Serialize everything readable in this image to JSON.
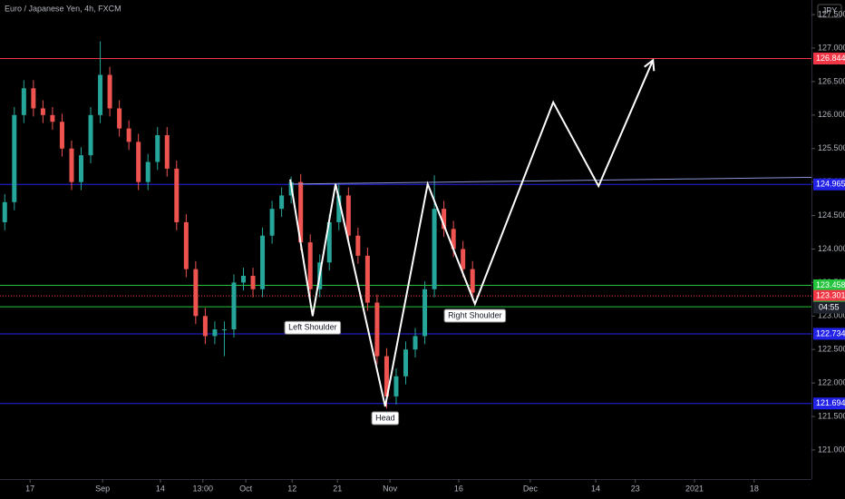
{
  "chart_data": {
    "type": "candlestick",
    "title": "Euro / Japanese Yen, 4h, FXCM",
    "currency": "JPY",
    "countdown": "04:55",
    "up_color": "#26a69a",
    "down_color": "#ef5350",
    "xlim": [
      0,
      170
    ],
    "ylim": [
      120.566,
      127.718
    ],
    "xticks": [
      {
        "value": 6.3,
        "label": "17"
      },
      {
        "value": 21.5,
        "label": "Sep"
      },
      {
        "value": 33.6,
        "label": "14"
      },
      {
        "value": 42.5,
        "label": "13:00"
      },
      {
        "value": 51.5,
        "label": "Oct"
      },
      {
        "value": 61.2,
        "label": "12"
      },
      {
        "value": 70.7,
        "label": "21"
      },
      {
        "value": 81.7,
        "label": "Nov"
      },
      {
        "value": 96.1,
        "label": "16"
      },
      {
        "value": 111.1,
        "label": "Dec"
      },
      {
        "value": 124.8,
        "label": "14"
      },
      {
        "value": 133.1,
        "label": "23"
      },
      {
        "value": 145.5,
        "label": "2021"
      },
      {
        "value": 158.0,
        "label": "18"
      }
    ],
    "yticks": [
      {
        "value": 121,
        "label": "121.000"
      },
      {
        "value": 121.5,
        "label": "121.500"
      },
      {
        "value": 122,
        "label": "122.000"
      },
      {
        "value": 122.5,
        "label": "122.500"
      },
      {
        "value": 123,
        "label": "123.000"
      },
      {
        "value": 123.5,
        "label": "123.500"
      },
      {
        "value": 124,
        "label": "124.000"
      },
      {
        "value": 124.5,
        "label": "124.500"
      },
      {
        "value": 125,
        "label": "125.000"
      },
      {
        "value": 125.5,
        "label": "125.500"
      },
      {
        "value": 126,
        "label": "126.000"
      },
      {
        "value": 126.5,
        "label": "126.500"
      },
      {
        "value": 127,
        "label": "127.000"
      },
      {
        "value": 127.5,
        "label": "127.500"
      }
    ],
    "candles": {
      "x": [
        1,
        3,
        5,
        7,
        9,
        11,
        13,
        15,
        17,
        19,
        21,
        23,
        25,
        27,
        29,
        31,
        33,
        35,
        37,
        39,
        41,
        43,
        45,
        47,
        49,
        51,
        53,
        55,
        57,
        59,
        61,
        63,
        65,
        67,
        69,
        71,
        73,
        75,
        77,
        79,
        81,
        83,
        85,
        87,
        89,
        91,
        93,
        95,
        97,
        99
      ],
      "open": [
        124.4,
        124.7,
        126.0,
        126.4,
        126.1,
        126.0,
        125.9,
        125.5,
        125.0,
        125.4,
        126.0,
        126.6,
        126.1,
        125.8,
        125.6,
        125.0,
        125.3,
        125.7,
        125.2,
        124.4,
        123.7,
        123.0,
        122.7,
        122.8,
        122.8,
        123.5,
        123.6,
        123.4,
        124.2,
        124.6,
        124.8,
        125.0,
        124.1,
        123.4,
        123.8,
        124.4,
        124.8,
        124.2,
        123.9,
        123.2,
        122.4,
        121.8,
        122.1,
        122.5,
        122.7,
        123.4,
        124.6,
        124.3,
        124.0,
        123.7
      ],
      "high": [
        124.82,
        126.12,
        126.52,
        126.52,
        126.22,
        126.12,
        126.02,
        125.62,
        125.52,
        126.12,
        127.1,
        126.72,
        126.22,
        125.92,
        125.72,
        125.42,
        125.82,
        125.82,
        125.32,
        124.52,
        123.82,
        123.12,
        122.92,
        122.92,
        123.62,
        123.72,
        123.72,
        124.32,
        124.72,
        124.92,
        125.08,
        125.12,
        124.22,
        123.92,
        124.52,
        124.98,
        124.92,
        124.32,
        124.02,
        123.32,
        122.52,
        122.22,
        122.62,
        122.82,
        123.52,
        125.1,
        124.72,
        124.42,
        124.12,
        123.82
      ],
      "low": [
        124.28,
        124.58,
        125.88,
        125.98,
        125.88,
        125.78,
        125.38,
        124.88,
        124.88,
        125.28,
        125.88,
        125.98,
        125.68,
        125.48,
        124.88,
        124.88,
        125.18,
        125.08,
        124.28,
        123.58,
        122.88,
        122.58,
        122.58,
        122.4,
        122.68,
        123.38,
        123.28,
        123.28,
        124.08,
        124.48,
        124.68,
        123.98,
        123.28,
        123.28,
        123.68,
        124.28,
        124.08,
        123.78,
        123.08,
        122.28,
        121.62,
        121.68,
        121.98,
        122.38,
        122.58,
        123.28,
        124.18,
        123.88,
        123.58,
        123.23
      ],
      "close": [
        124.7,
        126.0,
        126.4,
        126.1,
        126.0,
        125.9,
        125.5,
        125.0,
        125.4,
        126.0,
        126.6,
        126.1,
        125.8,
        125.6,
        125.0,
        125.3,
        125.7,
        125.2,
        124.4,
        123.7,
        123.0,
        122.7,
        122.8,
        122.8,
        123.5,
        123.6,
        123.4,
        124.2,
        124.6,
        124.8,
        125.0,
        124.1,
        123.4,
        123.8,
        124.4,
        124.8,
        124.2,
        123.9,
        123.2,
        122.4,
        121.8,
        122.1,
        122.5,
        122.7,
        123.4,
        124.6,
        124.3,
        124.0,
        123.7,
        123.35
      ]
    },
    "levels": [
      {
        "value": 126.844,
        "color": "#f23645",
        "style": "solid"
      },
      {
        "value": 124.965,
        "color": "#2323e8",
        "style": "solid"
      },
      {
        "value": 123.458,
        "color": "#22c53b",
        "style": "solid"
      },
      {
        "value": 123.301,
        "color": "#f23645",
        "style": "dotted"
      },
      {
        "value": 123.138,
        "color": "#22c53b",
        "style": "solid"
      },
      {
        "value": 122.734,
        "color": "#2323e8",
        "style": "solid"
      },
      {
        "value": 121.694,
        "color": "#2323e8",
        "style": "solid"
      }
    ],
    "neckline": {
      "x": [
        60.8,
        170
      ],
      "y": [
        124.97,
        125.07
      ],
      "color": "#8c95d8"
    },
    "pattern": {
      "x": [
        60.8,
        65.5,
        70.3,
        80.7,
        89.6,
        99.5,
        115.9,
        125.4,
        136.8
      ],
      "y": [
        125.04,
        123.0,
        124.97,
        121.65,
        124.97,
        123.18,
        126.19,
        124.94,
        126.82
      ],
      "color": "#ffffff"
    },
    "annotations": [
      "Left Shoulder",
      "Head",
      "Right Shoulder"
    ]
  }
}
